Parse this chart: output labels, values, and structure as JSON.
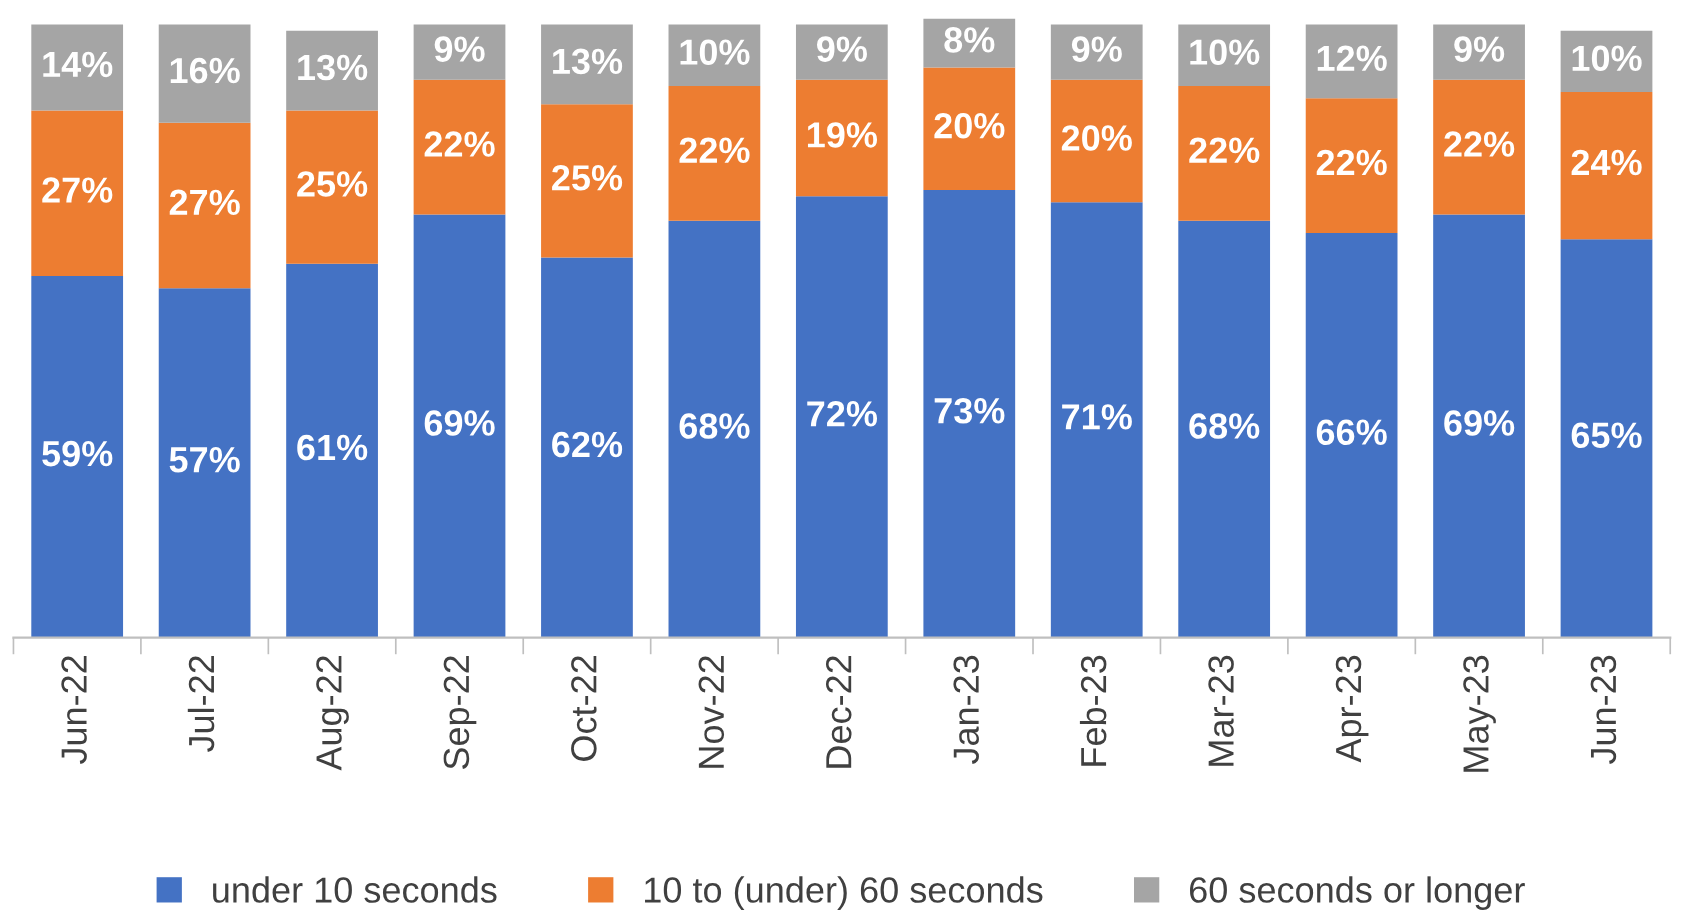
{
  "chart_data": {
    "type": "bar",
    "stacked": true,
    "categories": [
      "Jun-22",
      "Jul-22",
      "Aug-22",
      "Sep-22",
      "Oct-22",
      "Nov-22",
      "Dec-22",
      "Jan-23",
      "Feb-23",
      "Mar-23",
      "Apr-23",
      "May-23",
      "Jun-23"
    ],
    "ylim": [
      0,
      101
    ],
    "tick_labels": "x",
    "grid": false,
    "legend": "bottom",
    "series": [
      {
        "name": "under 10 seconds",
        "color": "#4472c4",
        "values": [
          59,
          57,
          61,
          69,
          62,
          68,
          72,
          73,
          71,
          68,
          66,
          69,
          65
        ],
        "value_labels": [
          "59%",
          "57%",
          "61%",
          "69%",
          "62%",
          "68%",
          "72%",
          "73%",
          "71%",
          "68%",
          "66%",
          "69%",
          "65%"
        ]
      },
      {
        "name": "10 to (under) 60 seconds",
        "color": "#ed7d31",
        "values": [
          27,
          27,
          25,
          22,
          25,
          22,
          19,
          20,
          20,
          22,
          22,
          22,
          24
        ],
        "value_labels": [
          "27%",
          "27%",
          "25%",
          "22%",
          "25%",
          "22%",
          "19%",
          "20%",
          "20%",
          "22%",
          "22%",
          "22%",
          "24%"
        ]
      },
      {
        "name": "60 seconds or longer",
        "color": "#a5a5a5",
        "values": [
          14,
          16,
          13,
          9,
          13,
          10,
          9,
          8,
          9,
          10,
          12,
          9,
          10
        ],
        "value_labels": [
          "14%",
          "16%",
          "13%",
          "9%",
          "13%",
          "10%",
          "9%",
          "8%",
          "9%",
          "10%",
          "12%",
          "9%",
          "10%"
        ]
      }
    ]
  }
}
